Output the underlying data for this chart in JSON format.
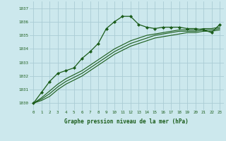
{
  "background_color": "#cce8ed",
  "grid_color": "#aaccd4",
  "line_color": "#1a5c1a",
  "text_color": "#1a5c1a",
  "xlabel": "Graphe pression niveau de la mer (hPa)",
  "ylim": [
    1029.5,
    1037.5
  ],
  "xlim": [
    -0.5,
    23.5
  ],
  "yticks": [
    1030,
    1031,
    1032,
    1033,
    1034,
    1035,
    1036,
    1037
  ],
  "xticks": [
    0,
    1,
    2,
    3,
    4,
    5,
    6,
    7,
    8,
    9,
    10,
    11,
    12,
    13,
    14,
    15,
    16,
    17,
    18,
    19,
    20,
    21,
    22,
    23
  ],
  "series1_x": [
    0,
    1,
    2,
    3,
    4,
    5,
    6,
    7,
    8,
    9,
    10,
    11,
    12,
    13,
    14,
    15,
    16,
    17,
    18,
    19,
    20,
    21,
    22,
    23
  ],
  "series1_y": [
    1030.0,
    1030.8,
    1031.6,
    1032.2,
    1032.4,
    1032.6,
    1033.3,
    1033.8,
    1034.4,
    1035.5,
    1036.0,
    1036.4,
    1036.4,
    1035.8,
    1035.6,
    1035.5,
    1035.6,
    1035.6,
    1035.6,
    1035.5,
    1035.5,
    1035.4,
    1035.2,
    1035.8
  ],
  "series2_x": [
    0,
    1,
    2,
    3,
    4,
    5,
    6,
    7,
    8,
    9,
    10,
    11,
    12,
    13,
    14,
    15,
    16,
    17,
    18,
    19,
    20,
    21,
    22,
    23
  ],
  "series2_y": [
    1030.0,
    1030.4,
    1030.9,
    1031.4,
    1031.8,
    1032.1,
    1032.4,
    1032.8,
    1033.2,
    1033.6,
    1034.0,
    1034.3,
    1034.6,
    1034.8,
    1035.0,
    1035.1,
    1035.2,
    1035.3,
    1035.4,
    1035.4,
    1035.4,
    1035.5,
    1035.5,
    1035.6
  ],
  "series3_x": [
    0,
    1,
    2,
    3,
    4,
    5,
    6,
    7,
    8,
    9,
    10,
    11,
    12,
    13,
    14,
    15,
    16,
    17,
    18,
    19,
    20,
    21,
    22,
    23
  ],
  "series3_y": [
    1030.0,
    1030.3,
    1030.7,
    1031.2,
    1031.6,
    1031.9,
    1032.2,
    1032.6,
    1033.0,
    1033.4,
    1033.8,
    1034.1,
    1034.4,
    1034.6,
    1034.8,
    1035.0,
    1035.1,
    1035.2,
    1035.3,
    1035.3,
    1035.3,
    1035.4,
    1035.4,
    1035.5
  ],
  "series4_x": [
    0,
    1,
    2,
    3,
    4,
    5,
    6,
    7,
    8,
    9,
    10,
    11,
    12,
    13,
    14,
    15,
    16,
    17,
    18,
    19,
    20,
    21,
    22,
    23
  ],
  "series4_y": [
    1030.0,
    1030.2,
    1030.5,
    1031.0,
    1031.4,
    1031.7,
    1032.0,
    1032.4,
    1032.8,
    1033.2,
    1033.6,
    1033.9,
    1034.2,
    1034.4,
    1034.6,
    1034.8,
    1034.9,
    1035.0,
    1035.1,
    1035.2,
    1035.2,
    1035.3,
    1035.3,
    1035.4
  ]
}
